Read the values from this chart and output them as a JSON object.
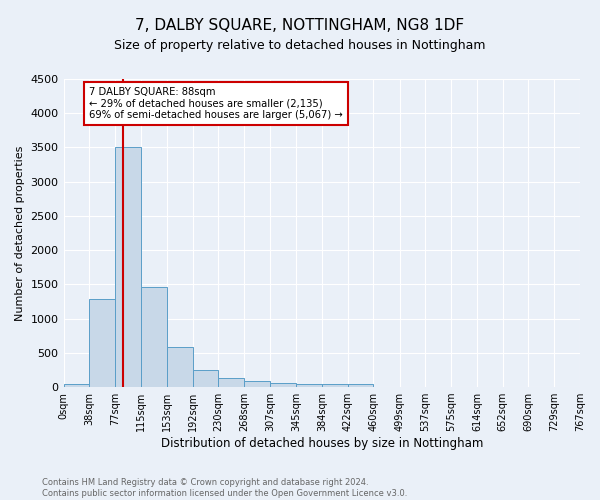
{
  "title": "7, DALBY SQUARE, NOTTINGHAM, NG8 1DF",
  "subtitle": "Size of property relative to detached houses in Nottingham",
  "xlabel": "Distribution of detached houses by size in Nottingham",
  "ylabel": "Number of detached properties",
  "footer_line1": "Contains HM Land Registry data © Crown copyright and database right 2024.",
  "footer_line2": "Contains public sector information licensed under the Open Government Licence v3.0.",
  "bar_edges": [
    0,
    38,
    77,
    115,
    153,
    192,
    230,
    268,
    307,
    345,
    384,
    422,
    460,
    499,
    537,
    575,
    614,
    652,
    690,
    729,
    767
  ],
  "bar_heights": [
    50,
    1280,
    3500,
    1460,
    590,
    250,
    135,
    85,
    55,
    45,
    45,
    50,
    0,
    0,
    0,
    0,
    0,
    0,
    0,
    0
  ],
  "bar_color": "#c8d8e8",
  "bar_edgecolor": "#5a9ec8",
  "vline_x": 88,
  "vline_color": "#cc0000",
  "annotation_text": "7 DALBY SQUARE: 88sqm\n← 29% of detached houses are smaller (2,135)\n69% of semi-detached houses are larger (5,067) →",
  "annotation_box_color": "#ffffff",
  "annotation_box_edgecolor": "#cc0000",
  "ylim": [
    0,
    4500
  ],
  "yticks": [
    0,
    500,
    1000,
    1500,
    2000,
    2500,
    3000,
    3500,
    4000,
    4500
  ],
  "bg_color": "#eaf0f8",
  "plot_bg_color": "#eaf0f8",
  "title_fontsize": 11,
  "subtitle_fontsize": 9,
  "tick_labels": [
    "0sqm",
    "38sqm",
    "77sqm",
    "115sqm",
    "153sqm",
    "192sqm",
    "230sqm",
    "268sqm",
    "307sqm",
    "345sqm",
    "384sqm",
    "422sqm",
    "460sqm",
    "499sqm",
    "537sqm",
    "575sqm",
    "614sqm",
    "652sqm",
    "690sqm",
    "729sqm",
    "767sqm"
  ]
}
